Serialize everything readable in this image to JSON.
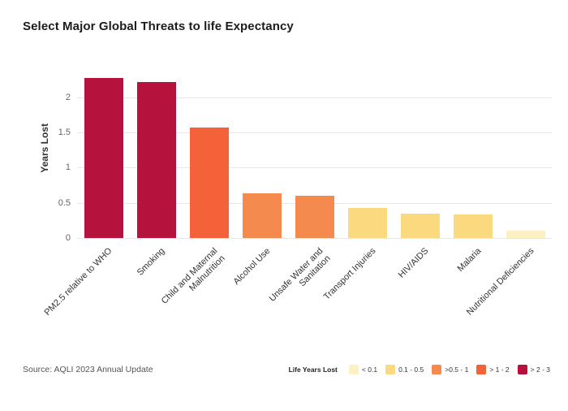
{
  "title": "Select Major Global Threats to life Expectancy",
  "source": "Source: AQLI 2023 Annual Update",
  "legend": {
    "title": "Life Years Lost",
    "items": [
      {
        "label": "< 0.1",
        "color": "#fdf1c4"
      },
      {
        "label": "0.1 - 0.5",
        "color": "#fbd97f"
      },
      {
        "label": ">0.5 - 1",
        "color": "#f58a4e"
      },
      {
        "label": "> 1 - 2",
        "color": "#f4623a"
      },
      {
        "label": "> 2 - 3",
        "color": "#b5123e"
      }
    ]
  },
  "chart_data": {
    "type": "bar",
    "title": "Select Major Global Threats to life Expectancy",
    "xlabel": "",
    "ylabel": "Years Lost",
    "ylim": [
      0,
      2.4
    ],
    "yticks": [
      0,
      0.5,
      1,
      1.5,
      2
    ],
    "grid": true,
    "legend_position": "bottom-right",
    "categories": [
      "PM2.5 relative to WHO",
      "Smoking",
      "Child and Maternal Malnutrition",
      "Alcohol Use",
      "Unsafe Water and Sanitation",
      "Transport Injuries",
      "HIV/AIDS",
      "Malaria",
      "Nutritional Deficiencies"
    ],
    "values": [
      2.27,
      2.21,
      1.57,
      0.64,
      0.6,
      0.43,
      0.35,
      0.33,
      0.1
    ],
    "colors": [
      "#b5123e",
      "#b5123e",
      "#f4623a",
      "#f58a4e",
      "#f58a4e",
      "#fbd97f",
      "#fbd97f",
      "#fbd97f",
      "#fdf1c4"
    ]
  }
}
